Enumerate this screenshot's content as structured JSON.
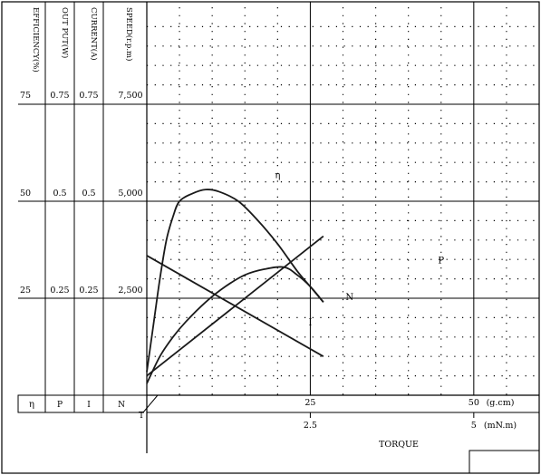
{
  "chart_data": {
    "type": "line",
    "title": "",
    "axis_headers": {
      "eta": "EFFICIENCY(%)",
      "p": "OUT PUT(W)",
      "i": "CURRENT(A)",
      "n": "SPEED(r.p.m)"
    },
    "scale_rows": [
      {
        "eta": "75",
        "p": "0.75",
        "i": "0.75",
        "n": "7,500"
      },
      {
        "eta": "50",
        "p": "0.5",
        "i": "0.5",
        "n": "5,000"
      },
      {
        "eta": "25",
        "p": "0.25",
        "i": "0.25",
        "n": "2,500"
      }
    ],
    "symbol_row": {
      "eta": "η",
      "p": "P",
      "i": "I",
      "n": "N"
    },
    "origin_label": "T",
    "x_axis": {
      "label": "TORQUE",
      "xlim": [
        0,
        60
      ],
      "primary_unit": "(g.cm)",
      "primary_ticks": [
        {
          "value": 25,
          "label": "25"
        },
        {
          "value": 50,
          "label": "50"
        }
      ],
      "secondary_unit": "(mN.m)",
      "secondary_ticks": [
        {
          "value": 25,
          "label": "2.5"
        },
        {
          "value": 50,
          "label": "5"
        }
      ]
    },
    "y_axis": {
      "ylim": [
        0,
        100
      ],
      "major_ticks": [
        25,
        50,
        75
      ]
    },
    "series": [
      {
        "name": "η",
        "label_at": [
          20,
          56
        ],
        "points": [
          [
            0,
            6
          ],
          [
            1,
            18
          ],
          [
            2,
            30
          ],
          [
            3,
            40
          ],
          [
            4,
            46
          ],
          [
            5,
            50
          ],
          [
            7,
            52
          ],
          [
            9,
            53
          ],
          [
            11,
            52.5
          ],
          [
            14,
            50
          ],
          [
            17,
            45
          ],
          [
            20,
            39
          ],
          [
            23,
            32
          ],
          [
            25,
            28
          ],
          [
            27,
            24
          ]
        ]
      },
      {
        "name": "P",
        "label_at": [
          45,
          34
        ],
        "points": [
          [
            0,
            3
          ],
          [
            2,
            10
          ],
          [
            4,
            15
          ],
          [
            6,
            19
          ],
          [
            9,
            24
          ],
          [
            12,
            28
          ],
          [
            15,
            31
          ],
          [
            18,
            32.5
          ],
          [
            21,
            33
          ],
          [
            23,
            31
          ],
          [
            25,
            28
          ],
          [
            27,
            24
          ]
        ]
      },
      {
        "name": "N",
        "label_at": [
          31,
          24.5
        ],
        "points": [
          [
            0,
            36
          ],
          [
            27,
            10
          ]
        ]
      },
      {
        "name": "I",
        "label_at": [
          25,
          18
        ],
        "points": [
          [
            0,
            5
          ],
          [
            27,
            41
          ]
        ]
      }
    ]
  }
}
